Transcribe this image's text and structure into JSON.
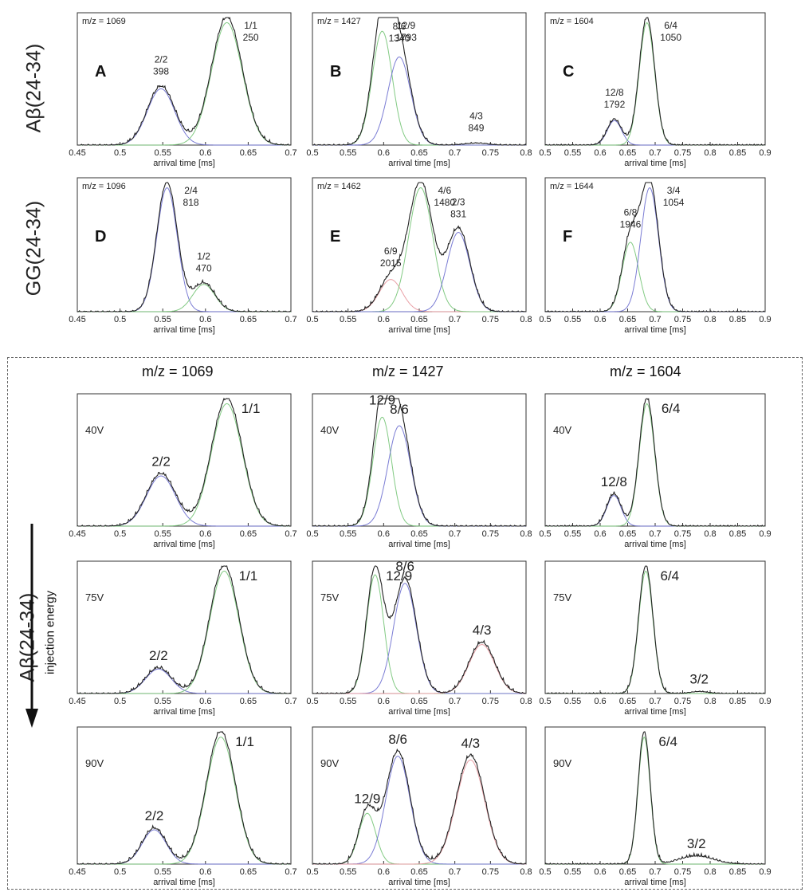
{
  "axis_label": "arrival time [ms]",
  "top_row_labels": [
    "Aβ(24-34)",
    "GG(24-34)"
  ],
  "bottom_column_headers": [
    "m/z = 1069",
    "m/z = 1427",
    "m/z = 1604"
  ],
  "bottom_side_label": "Aβ(24-34)",
  "bottom_side_sublabel": "injection energy",
  "colors": {
    "axis": "#333333",
    "data": "#222222",
    "green": "#74c476",
    "blue": "#6b6ecf",
    "red": "#e7969c"
  },
  "chart_data": [
    {
      "id": "A",
      "type": "line",
      "panel_letter": "A",
      "mz": "m/z = 1069",
      "xlim": [
        0.45,
        0.7
      ],
      "ticks": [
        "0.45",
        "0.5",
        "0.55",
        "0.6",
        "0.65",
        "0.7"
      ],
      "xlabel": "arrival time [ms]",
      "peaks": [
        {
          "label": "2/2",
          "sub": "398",
          "x": 0.548,
          "h": 0.46,
          "w": 0.016,
          "fit": "blue"
        },
        {
          "label": "1/1",
          "sub": "250",
          "x": 0.625,
          "h": 1.0,
          "w": 0.018,
          "fit": "green"
        }
      ]
    },
    {
      "id": "B",
      "type": "line",
      "panel_letter": "B",
      "mz": "m/z = 1427",
      "xlim": [
        0.5,
        0.8
      ],
      "ticks": [
        "0.5",
        "0.55",
        "0.6",
        "0.65",
        "0.7",
        "0.75",
        "0.8"
      ],
      "xlabel": "arrival time [ms]",
      "peaks": [
        {
          "label": "12/9",
          "sub": "1793",
          "x": 0.598,
          "h": 0.93,
          "w": 0.014,
          "fit": "green"
        },
        {
          "label": "8/6",
          "sub": "1340",
          "x": 0.622,
          "h": 0.72,
          "w": 0.016,
          "fit": "blue"
        },
        {
          "label": "4/3",
          "sub": "849",
          "x": 0.73,
          "h": 0.015,
          "w": 0.015,
          "fit": "none"
        }
      ]
    },
    {
      "id": "C",
      "type": "line",
      "panel_letter": "C",
      "mz": "m/z = 1604",
      "xlim": [
        0.5,
        0.9
      ],
      "ticks": [
        "0.5",
        "0.55",
        "0.6",
        "0.65",
        "0.7",
        "0.75",
        "0.8",
        "0.85",
        "0.9"
      ],
      "xlabel": "arrival time [ms]",
      "peaks": [
        {
          "label": "12/8",
          "sub": "1792",
          "x": 0.626,
          "h": 0.2,
          "w": 0.013,
          "fit": "blue"
        },
        {
          "label": "6/4",
          "sub": "1050",
          "x": 0.685,
          "h": 1.0,
          "w": 0.014,
          "fit": "green"
        }
      ]
    },
    {
      "id": "D",
      "type": "line",
      "panel_letter": "D",
      "mz": "m/z = 1096",
      "xlim": [
        0.45,
        0.7
      ],
      "ticks": [
        "0.45",
        "0.5",
        "0.55",
        "0.6",
        "0.65",
        "0.7"
      ],
      "xlabel": "arrival time [ms]",
      "peaks": [
        {
          "label": "2/4",
          "sub": "818",
          "x": 0.555,
          "h": 1.0,
          "w": 0.012,
          "fit": "blue"
        },
        {
          "label": "1/2",
          "sub": "470",
          "x": 0.598,
          "h": 0.22,
          "w": 0.013,
          "fit": "green"
        }
      ]
    },
    {
      "id": "E",
      "type": "line",
      "panel_letter": "E",
      "mz": "m/z = 1462",
      "xlim": [
        0.5,
        0.8
      ],
      "ticks": [
        "0.5",
        "0.55",
        "0.6",
        "0.65",
        "0.7",
        "0.75",
        "0.8"
      ],
      "xlabel": "arrival time [ms]",
      "peaks": [
        {
          "label": "6/9",
          "sub": "2015",
          "x": 0.61,
          "h": 0.26,
          "w": 0.016,
          "fit": "red"
        },
        {
          "label": "4/6",
          "sub": "1480",
          "x": 0.652,
          "h": 1.0,
          "w": 0.017,
          "fit": "green"
        },
        {
          "label": "2/3",
          "sub": "831",
          "x": 0.705,
          "h": 0.64,
          "w": 0.016,
          "fit": "blue"
        }
      ]
    },
    {
      "id": "F",
      "type": "line",
      "panel_letter": "F",
      "mz": "m/z = 1644",
      "xlim": [
        0.5,
        0.9
      ],
      "ticks": [
        "0.5",
        "0.55",
        "0.6",
        "0.65",
        "0.7",
        "0.75",
        "0.8",
        "0.85",
        "0.9"
      ],
      "xlabel": "arrival time [ms]",
      "peaks": [
        {
          "label": "6/8",
          "sub": "1946",
          "x": 0.655,
          "h": 0.56,
          "w": 0.015,
          "fit": "green"
        },
        {
          "label": "3/4",
          "sub": "1054",
          "x": 0.69,
          "h": 1.0,
          "w": 0.016,
          "fit": "blue"
        }
      ]
    },
    {
      "id": "G1",
      "type": "line",
      "voltage": "40V",
      "xlim": [
        0.45,
        0.7
      ],
      "ticks": [
        "0.45",
        "0.5",
        "0.55",
        "0.6",
        "0.65",
        "0.7"
      ],
      "xlabel": "arrival time [ms]",
      "peaks": [
        {
          "label": "2/2",
          "x": 0.548,
          "h": 0.41,
          "w": 0.017,
          "fit": "blue"
        },
        {
          "label": "1/1",
          "x": 0.625,
          "h": 1.0,
          "w": 0.018,
          "fit": "green"
        }
      ]
    },
    {
      "id": "G2",
      "type": "line",
      "voltage": "40V",
      "xlim": [
        0.5,
        0.8
      ],
      "ticks": [
        "0.5",
        "0.55",
        "0.6",
        "0.65",
        "0.7",
        "0.75",
        "0.8"
      ],
      "xlabel": "arrival time [ms]",
      "peaks": [
        {
          "label": "12/9",
          "x": 0.598,
          "h": 0.89,
          "w": 0.013,
          "fit": "green"
        },
        {
          "label": "8/6",
          "x": 0.622,
          "h": 0.82,
          "w": 0.016,
          "fit": "blue"
        }
      ]
    },
    {
      "id": "G3",
      "type": "line",
      "voltage": "40V",
      "xlim": [
        0.5,
        0.9
      ],
      "ticks": [
        "0.5",
        "0.55",
        "0.6",
        "0.65",
        "0.7",
        "0.75",
        "0.8",
        "0.85",
        "0.9"
      ],
      "xlabel": "arrival time [ms]",
      "peaks": [
        {
          "label": "12/8",
          "x": 0.625,
          "h": 0.25,
          "w": 0.013,
          "fit": "blue"
        },
        {
          "label": "6/4",
          "x": 0.685,
          "h": 1.0,
          "w": 0.014,
          "fit": "green"
        }
      ]
    },
    {
      "id": "H1",
      "type": "line",
      "voltage": "75V",
      "xlim": [
        0.45,
        0.7
      ],
      "ticks": [
        "0.45",
        "0.5",
        "0.55",
        "0.6",
        "0.65",
        "0.7"
      ],
      "xlabel": "arrival time [ms]",
      "peaks": [
        {
          "label": "2/2",
          "x": 0.545,
          "h": 0.2,
          "w": 0.015,
          "fit": "blue"
        },
        {
          "label": "1/1",
          "x": 0.622,
          "h": 1.0,
          "w": 0.017,
          "fit": "green"
        }
      ]
    },
    {
      "id": "H2",
      "type": "line",
      "voltage": "75V",
      "xlim": [
        0.5,
        0.8
      ],
      "ticks": [
        "0.5",
        "0.55",
        "0.6",
        "0.65",
        "0.7",
        "0.75",
        "0.8"
      ],
      "xlabel": "arrival time [ms]",
      "peaks": [
        {
          "label": "12/9",
          "x": 0.588,
          "h": 0.97,
          "w": 0.012,
          "fit": "green"
        },
        {
          "label": "8/6",
          "x": 0.63,
          "h": 0.9,
          "w": 0.016,
          "fit": "blue"
        },
        {
          "label": "4/3",
          "x": 0.738,
          "h": 0.4,
          "w": 0.018,
          "fit": "red"
        }
      ]
    },
    {
      "id": "H3",
      "type": "line",
      "voltage": "75V",
      "xlim": [
        0.5,
        0.9
      ],
      "ticks": [
        "0.5",
        "0.55",
        "0.6",
        "0.65",
        "0.7",
        "0.75",
        "0.8",
        "0.85",
        "0.9"
      ],
      "xlabel": "arrival time [ms]",
      "peaks": [
        {
          "label": "6/4",
          "x": 0.683,
          "h": 1.0,
          "w": 0.013,
          "fit": "green"
        },
        {
          "label": "3/2",
          "x": 0.78,
          "h": 0.015,
          "w": 0.015,
          "fit": "none"
        }
      ]
    },
    {
      "id": "I1",
      "type": "line",
      "voltage": "90V",
      "xlim": [
        0.45,
        0.7
      ],
      "ticks": [
        "0.45",
        "0.5",
        "0.55",
        "0.6",
        "0.65",
        "0.7"
      ],
      "xlabel": "arrival time [ms]",
      "peaks": [
        {
          "label": "2/2",
          "x": 0.54,
          "h": 0.27,
          "w": 0.014,
          "fit": "blue"
        },
        {
          "label": "1/1",
          "x": 0.618,
          "h": 1.0,
          "w": 0.017,
          "fit": "green"
        }
      ]
    },
    {
      "id": "I2",
      "type": "line",
      "voltage": "90V",
      "xlim": [
        0.5,
        0.8
      ],
      "ticks": [
        "0.5",
        "0.55",
        "0.6",
        "0.65",
        "0.7",
        "0.75",
        "0.8"
      ],
      "xlabel": "arrival time [ms]",
      "peaks": [
        {
          "label": "12/9",
          "x": 0.577,
          "h": 0.4,
          "w": 0.012,
          "fit": "green"
        },
        {
          "label": "8/6",
          "x": 0.62,
          "h": 0.85,
          "w": 0.017,
          "fit": "blue"
        },
        {
          "label": "4/3",
          "x": 0.722,
          "h": 0.82,
          "w": 0.02,
          "fit": "red"
        }
      ]
    },
    {
      "id": "I3",
      "type": "line",
      "voltage": "90V",
      "xlim": [
        0.5,
        0.9
      ],
      "ticks": [
        "0.5",
        "0.55",
        "0.6",
        "0.65",
        "0.7",
        "0.75",
        "0.8",
        "0.85",
        "0.9"
      ],
      "xlabel": "arrival time [ms]",
      "peaks": [
        {
          "label": "6/4",
          "x": 0.68,
          "h": 1.0,
          "w": 0.011,
          "fit": "green"
        },
        {
          "label": "3/2",
          "x": 0.775,
          "h": 0.06,
          "w": 0.03,
          "fit": "none"
        }
      ]
    }
  ]
}
